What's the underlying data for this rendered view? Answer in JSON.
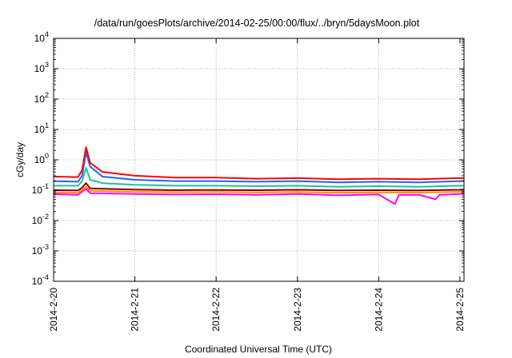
{
  "chart_data": {
    "type": "line",
    "title": "/data/run/goesPlots/archive/2014-02-25/00:00/flux/../bryn/5daysMoon.plot",
    "xlabel": "Coordinated Universal Time (UTC)",
    "ylabel": "cGy/day",
    "yscale": "log",
    "ylim": [
      0.0001,
      10000
    ],
    "xlim": [
      0,
      5.05
    ],
    "grid": true,
    "x_ticks": [
      {
        "value": 0,
        "label": "2014-2-20"
      },
      {
        "value": 1,
        "label": "2014-2-21"
      },
      {
        "value": 2,
        "label": "2014-2-22"
      },
      {
        "value": 3,
        "label": "2014-2-23"
      },
      {
        "value": 4,
        "label": "2014-2-24"
      },
      {
        "value": 5,
        "label": "2014-2-25"
      }
    ],
    "y_ticks": [
      {
        "value": 0.0001,
        "base": "10",
        "exp": "-4"
      },
      {
        "value": 0.001,
        "base": "10",
        "exp": "-3"
      },
      {
        "value": 0.01,
        "base": "10",
        "exp": "-2"
      },
      {
        "value": 0.1,
        "base": "10",
        "exp": "-1"
      },
      {
        "value": 1,
        "base": "10",
        "exp": "0"
      },
      {
        "value": 10,
        "base": "10",
        "exp": "1"
      },
      {
        "value": 100,
        "base": "10",
        "exp": "2"
      },
      {
        "value": 1000,
        "base": "10",
        "exp": "3"
      },
      {
        "value": 10000,
        "base": "10",
        "exp": "4"
      }
    ],
    "series": [
      {
        "color": "#ff00ff",
        "values": [
          [
            0,
            0.075
          ],
          [
            0.3,
            0.07
          ],
          [
            0.35,
            0.09
          ],
          [
            0.4,
            0.11
          ],
          [
            0.45,
            0.08
          ],
          [
            1,
            0.075
          ],
          [
            1.5,
            0.072
          ],
          [
            2,
            0.074
          ],
          [
            2.5,
            0.07
          ],
          [
            3,
            0.075
          ],
          [
            3.5,
            0.068
          ],
          [
            4,
            0.072
          ],
          [
            4.2,
            0.035
          ],
          [
            4.25,
            0.07
          ],
          [
            4.5,
            0.07
          ],
          [
            4.7,
            0.05
          ],
          [
            4.75,
            0.07
          ],
          [
            5,
            0.075
          ],
          [
            5.05,
            0.08
          ]
        ]
      },
      {
        "color": "#ff8c00",
        "values": [
          [
            0,
            0.085
          ],
          [
            0.3,
            0.083
          ],
          [
            0.35,
            0.1
          ],
          [
            0.4,
            0.13
          ],
          [
            0.45,
            0.095
          ],
          [
            1,
            0.088
          ],
          [
            1.5,
            0.086
          ],
          [
            2,
            0.087
          ],
          [
            2.5,
            0.085
          ],
          [
            3,
            0.087
          ],
          [
            3.5,
            0.083
          ],
          [
            4,
            0.085
          ],
          [
            4.5,
            0.084
          ],
          [
            5,
            0.088
          ],
          [
            5.05,
            0.09
          ]
        ]
      },
      {
        "color": "#8b0000",
        "values": [
          [
            0,
            0.1
          ],
          [
            0.3,
            0.098
          ],
          [
            0.35,
            0.12
          ],
          [
            0.4,
            0.17
          ],
          [
            0.45,
            0.115
          ],
          [
            1,
            0.105
          ],
          [
            1.5,
            0.1
          ],
          [
            2,
            0.102
          ],
          [
            2.5,
            0.1
          ],
          [
            3,
            0.103
          ],
          [
            3.5,
            0.098
          ],
          [
            4,
            0.1
          ],
          [
            4.5,
            0.098
          ],
          [
            5,
            0.103
          ],
          [
            5.05,
            0.105
          ]
        ]
      },
      {
        "color": "#20c0a0",
        "values": [
          [
            0,
            0.14
          ],
          [
            0.3,
            0.14
          ],
          [
            0.35,
            0.2
          ],
          [
            0.4,
            0.55
          ],
          [
            0.45,
            0.22
          ],
          [
            0.6,
            0.17
          ],
          [
            1,
            0.15
          ],
          [
            1.5,
            0.14
          ],
          [
            2,
            0.14
          ],
          [
            2.5,
            0.135
          ],
          [
            3,
            0.14
          ],
          [
            3.5,
            0.13
          ],
          [
            4,
            0.135
          ],
          [
            4.5,
            0.13
          ],
          [
            5,
            0.14
          ],
          [
            5.05,
            0.14
          ]
        ]
      },
      {
        "color": "#1e64ff",
        "values": [
          [
            0,
            0.2
          ],
          [
            0.3,
            0.19
          ],
          [
            0.35,
            0.3
          ],
          [
            0.4,
            1.8
          ],
          [
            0.45,
            0.6
          ],
          [
            0.6,
            0.28
          ],
          [
            1,
            0.22
          ],
          [
            1.5,
            0.2
          ],
          [
            2,
            0.2
          ],
          [
            2.5,
            0.19
          ],
          [
            3,
            0.2
          ],
          [
            3.5,
            0.18
          ],
          [
            4,
            0.19
          ],
          [
            4.5,
            0.18
          ],
          [
            5,
            0.2
          ],
          [
            5.05,
            0.2
          ]
        ]
      },
      {
        "color": "#ff0000",
        "values": [
          [
            0,
            0.28
          ],
          [
            0.3,
            0.27
          ],
          [
            0.35,
            0.45
          ],
          [
            0.4,
            2.6
          ],
          [
            0.45,
            0.8
          ],
          [
            0.6,
            0.4
          ],
          [
            1,
            0.3
          ],
          [
            1.5,
            0.26
          ],
          [
            2,
            0.26
          ],
          [
            2.5,
            0.24
          ],
          [
            3,
            0.25
          ],
          [
            3.5,
            0.23
          ],
          [
            4,
            0.24
          ],
          [
            4.5,
            0.23
          ],
          [
            5,
            0.25
          ],
          [
            5.05,
            0.25
          ]
        ]
      }
    ]
  }
}
